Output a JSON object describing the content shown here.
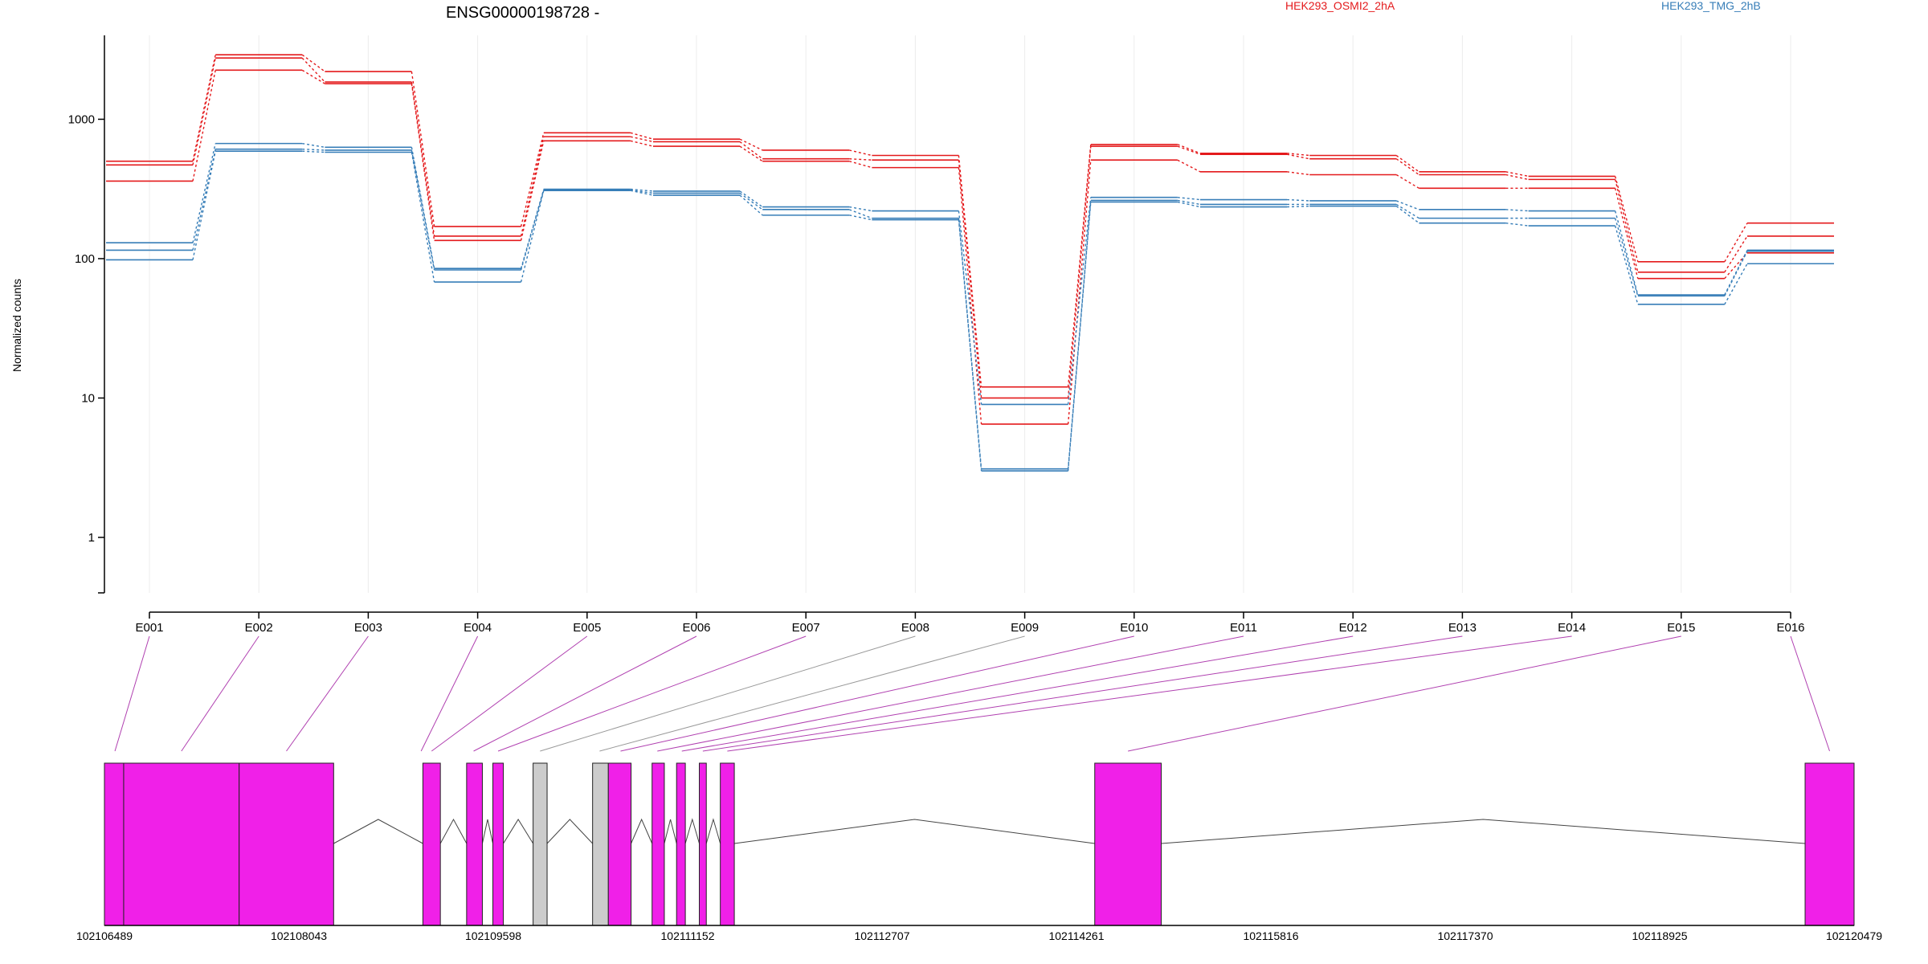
{
  "chart_data": {
    "type": "line",
    "title": "ENSG00000198728 -",
    "ylabel": "Normalized counts",
    "yscale": "log",
    "ylim": [
      0.4,
      4000
    ],
    "yticks": [
      1,
      10,
      100,
      1000
    ],
    "grid": "vertical",
    "legend_placement": "top-right",
    "categories": [
      "E001",
      "E002",
      "E003",
      "E004",
      "E005",
      "E006",
      "E007",
      "E008",
      "E009",
      "E010",
      "E011",
      "E012",
      "E013",
      "E014",
      "E015",
      "E016"
    ],
    "series": [
      {
        "name": "HEK293_OSMI2_2hA",
        "group": "HEK293_OSMI2_2hA",
        "values": [
          500,
          2900,
          2200,
          170,
          800,
          720,
          600,
          550,
          12,
          660,
          570,
          550,
          420,
          390,
          95,
          180
        ]
      },
      {
        "group": "HEK293_OSMI2_2hA",
        "values": [
          470,
          2750,
          1850,
          145,
          750,
          690,
          520,
          510,
          10,
          640,
          560,
          520,
          400,
          370,
          80,
          145
        ]
      },
      {
        "group": "HEK293_OSMI2_2hA",
        "values": [
          360,
          2250,
          1800,
          135,
          700,
          640,
          500,
          450,
          6.5,
          510,
          420,
          400,
          320,
          320,
          72,
          110
        ]
      },
      {
        "name": "HEK293_TMG_2hB",
        "group": "HEK293_TMG_2hB",
        "values": [
          130,
          670,
          630,
          85,
          315,
          305,
          235,
          220,
          9,
          275,
          265,
          260,
          225,
          220,
          55,
          115
        ]
      },
      {
        "group": "HEK293_TMG_2hB",
        "values": [
          115,
          610,
          600,
          83,
          310,
          295,
          225,
          195,
          3.1,
          262,
          245,
          245,
          195,
          195,
          54,
          113
        ]
      },
      {
        "group": "HEK293_TMG_2hB",
        "values": [
          98,
          590,
          580,
          68,
          308,
          285,
          205,
          190,
          3.0,
          255,
          235,
          238,
          180,
          172,
          47,
          92
        ]
      }
    ],
    "colors": {
      "HEK293_OSMI2_2hA": "#e41a1c",
      "HEK293_TMG_2hB": "#377eb8"
    },
    "gene_model": {
      "coordinate_ticks": [
        "102106489",
        "102108043",
        "102109598",
        "102111152",
        "102112707",
        "102114261",
        "102115816",
        "102117370",
        "102118925",
        "102120479"
      ],
      "exon_color": "#f020e8",
      "non_tested_color": "#cccccc",
      "connector_color": "#b040b0"
    }
  }
}
